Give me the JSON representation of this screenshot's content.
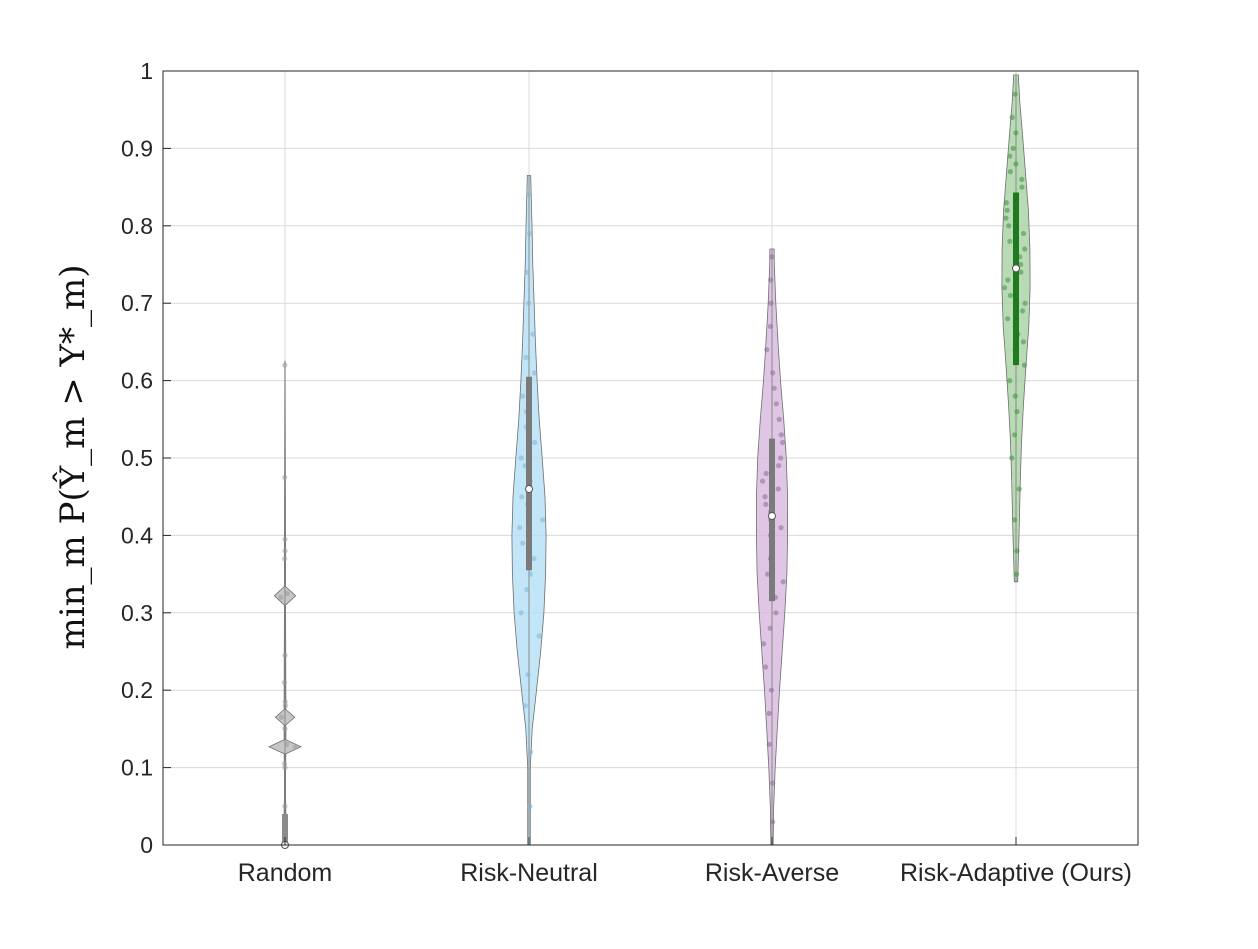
{
  "chart_data": {
    "type": "violin",
    "title": "",
    "xlabel": "",
    "ylabel": "min_m P(Ŷ_m > Y*_m)",
    "ylim": [
      0,
      1
    ],
    "yticks": [
      "0",
      "0.1",
      "0.2",
      "0.3",
      "0.4",
      "0.5",
      "0.6",
      "0.7",
      "0.8",
      "0.9",
      "1"
    ],
    "grid": true,
    "categories": [
      "Random",
      "Risk-Neutral",
      "Risk-Averse",
      "Risk-Adaptive (Ours)"
    ],
    "colors": {
      "Random": "#b8b8b8",
      "Risk-Neutral": "#b3def5",
      "Risk-Averse": "#d7b8dd",
      "Risk-Adaptive (Ours)": "#a6d2a4",
      "random_box": "#8c8c8c",
      "neutral_box": "#7a7a7a",
      "averse_box": "#7a7a7a",
      "adaptive_box": "#1f7a1f"
    },
    "violins": [
      {
        "name": "Random",
        "min": 0.0,
        "max": 0.625,
        "q1": 0.0,
        "median": 0.0,
        "q3": 0.04,
        "profile": [
          [
            0.0,
            0.004
          ],
          [
            0.02,
            0.004
          ],
          [
            0.04,
            0.004
          ],
          [
            0.06,
            0.003
          ],
          [
            0.1,
            0.003
          ],
          [
            0.118,
            0.004
          ],
          [
            0.127,
            0.075
          ],
          [
            0.136,
            0.004
          ],
          [
            0.155,
            0.004
          ],
          [
            0.165,
            0.045
          ],
          [
            0.175,
            0.004
          ],
          [
            0.31,
            0.003
          ],
          [
            0.322,
            0.05
          ],
          [
            0.334,
            0.003
          ],
          [
            0.4,
            0.003
          ],
          [
            0.625,
            0.001
          ]
        ],
        "points": [
          0.0,
          0.01,
          0.02,
          0.03,
          0.05,
          0.1,
          0.105,
          0.127,
          0.13,
          0.15,
          0.165,
          0.18,
          0.185,
          0.21,
          0.245,
          0.32,
          0.325,
          0.37,
          0.38,
          0.395,
          0.475,
          0.62
        ]
      },
      {
        "name": "Risk-Neutral",
        "min": 0.0,
        "max": 0.865,
        "q1": 0.355,
        "median": 0.46,
        "q3": 0.605,
        "profile": [
          [
            0.0,
            0.006
          ],
          [
            0.1,
            0.006
          ],
          [
            0.15,
            0.015
          ],
          [
            0.2,
            0.035
          ],
          [
            0.25,
            0.055
          ],
          [
            0.3,
            0.07
          ],
          [
            0.35,
            0.078
          ],
          [
            0.4,
            0.08
          ],
          [
            0.45,
            0.075
          ],
          [
            0.5,
            0.062
          ],
          [
            0.55,
            0.048
          ],
          [
            0.6,
            0.038
          ],
          [
            0.65,
            0.03
          ],
          [
            0.7,
            0.024
          ],
          [
            0.75,
            0.018
          ],
          [
            0.8,
            0.014
          ],
          [
            0.865,
            0.008
          ]
        ],
        "points": [
          0.05,
          0.12,
          0.18,
          0.22,
          0.27,
          0.3,
          0.33,
          0.35,
          0.37,
          0.39,
          0.41,
          0.42,
          0.44,
          0.45,
          0.47,
          0.49,
          0.5,
          0.52,
          0.54,
          0.56,
          0.58,
          0.61,
          0.63,
          0.66,
          0.7,
          0.74,
          0.79,
          0.84
        ]
      },
      {
        "name": "Risk-Averse",
        "min": 0.0,
        "max": 0.77,
        "q1": 0.315,
        "median": 0.425,
        "q3": 0.525,
        "profile": [
          [
            0.0,
            0.005
          ],
          [
            0.05,
            0.008
          ],
          [
            0.1,
            0.015
          ],
          [
            0.15,
            0.025
          ],
          [
            0.2,
            0.035
          ],
          [
            0.25,
            0.048
          ],
          [
            0.3,
            0.06
          ],
          [
            0.35,
            0.07
          ],
          [
            0.4,
            0.073
          ],
          [
            0.45,
            0.073
          ],
          [
            0.5,
            0.067
          ],
          [
            0.55,
            0.055
          ],
          [
            0.6,
            0.04
          ],
          [
            0.65,
            0.028
          ],
          [
            0.7,
            0.018
          ],
          [
            0.75,
            0.011
          ],
          [
            0.77,
            0.01
          ]
        ],
        "points": [
          0.03,
          0.08,
          0.13,
          0.17,
          0.2,
          0.23,
          0.26,
          0.28,
          0.3,
          0.32,
          0.34,
          0.35,
          0.37,
          0.38,
          0.4,
          0.41,
          0.42,
          0.43,
          0.44,
          0.45,
          0.46,
          0.47,
          0.48,
          0.49,
          0.5,
          0.52,
          0.53,
          0.55,
          0.57,
          0.59,
          0.61,
          0.64,
          0.67,
          0.7,
          0.73,
          0.76
        ]
      },
      {
        "name": "Risk-Adaptive (Ours)",
        "min": 0.34,
        "max": 0.995,
        "q1": 0.62,
        "median": 0.745,
        "q3": 0.843,
        "profile": [
          [
            0.34,
            0.008
          ],
          [
            0.38,
            0.012
          ],
          [
            0.42,
            0.016
          ],
          [
            0.47,
            0.02
          ],
          [
            0.52,
            0.026
          ],
          [
            0.57,
            0.035
          ],
          [
            0.62,
            0.047
          ],
          [
            0.67,
            0.06
          ],
          [
            0.72,
            0.066
          ],
          [
            0.77,
            0.065
          ],
          [
            0.82,
            0.058
          ],
          [
            0.87,
            0.044
          ],
          [
            0.92,
            0.03
          ],
          [
            0.96,
            0.018
          ],
          [
            0.995,
            0.011
          ]
        ],
        "points": [
          0.35,
          0.38,
          0.42,
          0.46,
          0.5,
          0.53,
          0.56,
          0.58,
          0.6,
          0.62,
          0.64,
          0.65,
          0.66,
          0.67,
          0.68,
          0.69,
          0.7,
          0.71,
          0.72,
          0.73,
          0.74,
          0.75,
          0.76,
          0.77,
          0.78,
          0.79,
          0.8,
          0.81,
          0.82,
          0.83,
          0.84,
          0.85,
          0.86,
          0.87,
          0.88,
          0.89,
          0.9,
          0.92,
          0.94,
          0.97
        ]
      }
    ]
  }
}
